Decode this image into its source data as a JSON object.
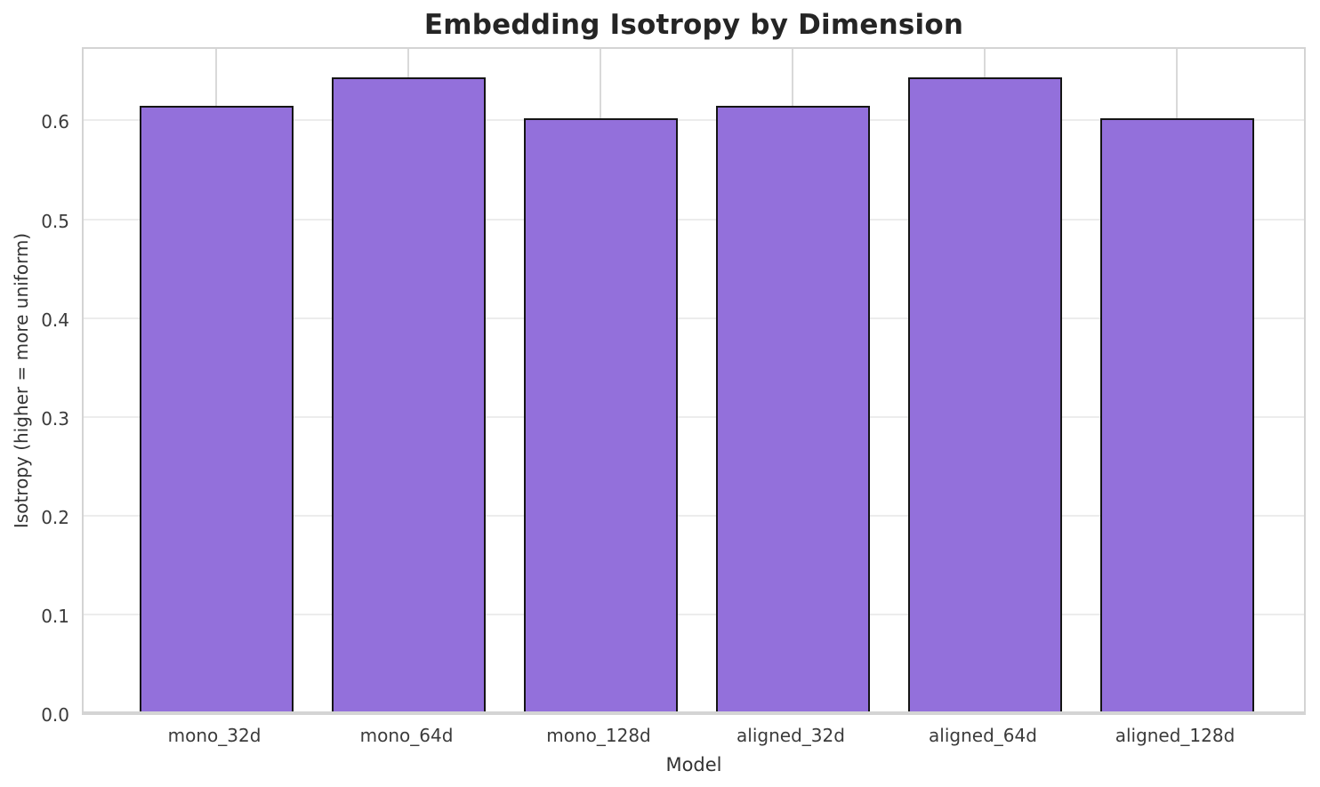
{
  "figure": {
    "title": "Embedding Isotropy by Dimension",
    "xlabel": "Model",
    "ylabel": "Isotropy (higher = more uniform)"
  },
  "chart_data": {
    "type": "bar",
    "title": "Embedding Isotropy by Dimension",
    "xlabel": "Model",
    "ylabel": "Isotropy (higher = more uniform)",
    "categories": [
      "mono_32d",
      "mono_64d",
      "mono_128d",
      "aligned_32d",
      "aligned_64d",
      "aligned_128d"
    ],
    "values": [
      0.615,
      0.644,
      0.602,
      0.615,
      0.644,
      0.602
    ],
    "ytick_labels": [
      "0.0",
      "0.1",
      "0.2",
      "0.3",
      "0.4",
      "0.5",
      "0.6"
    ],
    "yticks": [
      0.0,
      0.1,
      0.2,
      0.3,
      0.4,
      0.5,
      0.6
    ],
    "ylim": [
      0,
      0.676
    ],
    "grid": true,
    "legend_position": "none",
    "colors": {
      "bar_fill": "#9370DB",
      "bar_edge": "#151515",
      "h_grid": "#ececec",
      "v_grid": "#d9d9d9",
      "spine": "#d4d4d4",
      "title_text": "#252525",
      "tick_text": "#3b3b3b"
    }
  }
}
